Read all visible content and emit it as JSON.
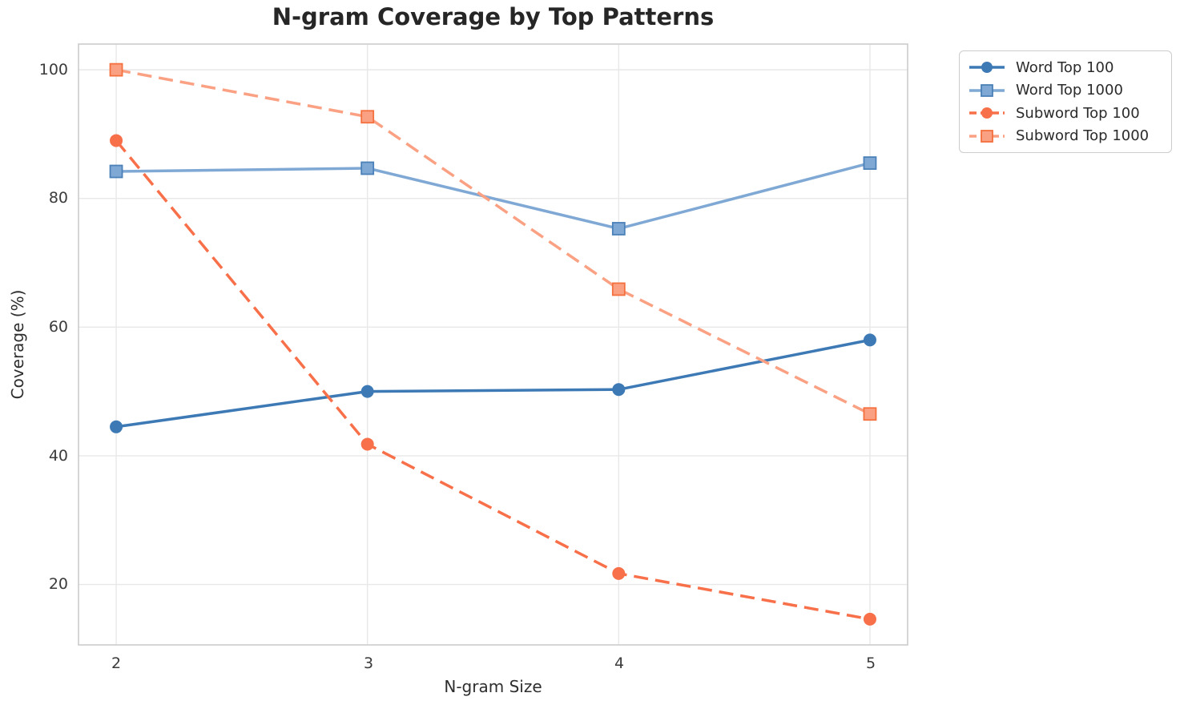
{
  "chart_data": {
    "type": "line",
    "title": "N-gram Coverage by Top Patterns",
    "xlabel": "N-gram Size",
    "ylabel": "Coverage (%)",
    "x": [
      2,
      3,
      4,
      5
    ],
    "xtick_labels": [
      "2",
      "3",
      "4",
      "5"
    ],
    "ytick_values": [
      20,
      40,
      60,
      80,
      100
    ],
    "ytick_labels": [
      "20",
      "40",
      "60",
      "80",
      "100"
    ],
    "xlim": [
      1.85,
      5.15
    ],
    "ylim": [
      10.6,
      104.0
    ],
    "grid": true,
    "legend_position": "outside upper right",
    "series": [
      {
        "name": "Word Top 100",
        "values": [
          44.5,
          50.0,
          50.3,
          58.0
        ],
        "color": "#3D7AB5",
        "edge": "#3D7AB5",
        "style": "solid",
        "marker": "circle"
      },
      {
        "name": "Word Top 1000",
        "values": [
          84.2,
          84.7,
          75.3,
          85.5
        ],
        "color": "#7FA9D4",
        "edge": "#4B81B8",
        "style": "solid",
        "marker": "square"
      },
      {
        "name": "Subword Top 100",
        "values": [
          89.0,
          41.8,
          21.7,
          14.6
        ],
        "color": "#F8704A",
        "edge": "#F8704A",
        "style": "dashed",
        "marker": "circle"
      },
      {
        "name": "Subword Top 1000",
        "values": [
          100.0,
          92.7,
          65.9,
          46.5
        ],
        "color": "#FBA183",
        "edge": "#F4703E",
        "style": "dashed",
        "marker": "square"
      }
    ],
    "colors": {
      "grid": "#e8e8e8",
      "spine": "#cccccc",
      "title_text": "#262626",
      "tick_text": "#3b3b3b",
      "legend_border": "#cccccc"
    }
  }
}
